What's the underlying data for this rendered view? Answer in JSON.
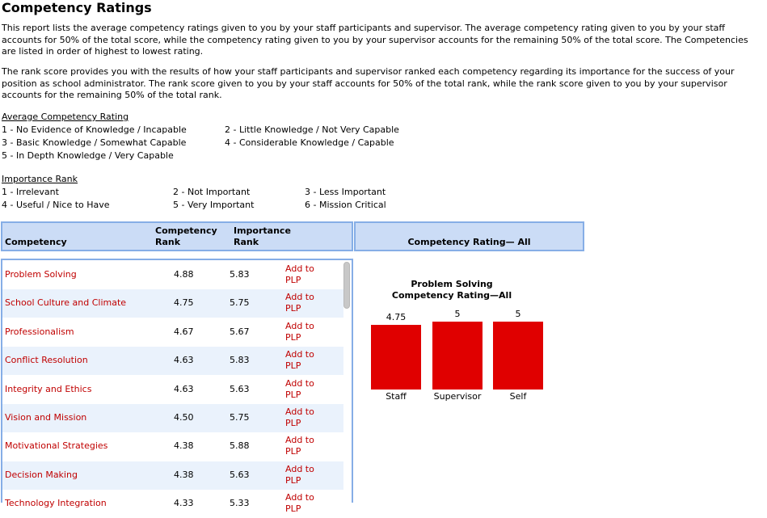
{
  "title": "Competency Ratings",
  "intro": {
    "p1": "This report lists the average competency ratings given to you by your staff participants and supervisor. The average competency rating given to you by your staff accounts for 50% of the total score, while the competency rating given to you by your supervisor accounts for the remaining 50% of the total score. The Competencies are listed in order of highest to lowest rating.",
    "p2": "The rank score provides you with the results of how your staff participants and supervisor ranked each competency regarding its importance for the success of your position as school administrator. The rank score given to you by your staff accounts for 50% of the total rank, while the rank score given to you by your supervisor accounts for the remaining 50% of the total rank."
  },
  "rating_legend": {
    "title": "Average Competency Rating",
    "items": [
      "1 - No Evidence of Knowledge / Incapable",
      "2 - Little Knowledge / Not Very Capable",
      "3 - Basic Knowledge / Somewhat Capable",
      "4 - Considerable Knowledge / Capable",
      "5 - In Depth Knowledge / Very Capable"
    ]
  },
  "importance_legend": {
    "title": "Importance Rank",
    "items": [
      "1 - Irrelevant",
      "2 - Not Important",
      "3 - Less Important",
      "4 - Useful / Nice to Have",
      "5 - Very Important",
      "6 - Mission Critical"
    ]
  },
  "table": {
    "headers": {
      "competency": "Competency",
      "comp_rank_1": "Competency",
      "comp_rank_2": "Rank",
      "imp_rank_1": "Importance",
      "imp_rank_2": "Rank",
      "rating_all": "Competency Rating— All"
    },
    "add_label_1": "Add to",
    "add_label_2": "PLP",
    "rows": [
      {
        "name": "Problem Solving",
        "comp_rank": "4.88",
        "imp_rank": "5.83"
      },
      {
        "name": "School Culture and Climate",
        "comp_rank": "4.75",
        "imp_rank": "5.75"
      },
      {
        "name": "Professionalism",
        "comp_rank": "4.67",
        "imp_rank": "5.67"
      },
      {
        "name": "Conflict Resolution",
        "comp_rank": "4.63",
        "imp_rank": "5.83"
      },
      {
        "name": "Integrity and Ethics",
        "comp_rank": "4.63",
        "imp_rank": "5.63"
      },
      {
        "name": "Vision and Mission",
        "comp_rank": "4.50",
        "imp_rank": "5.75"
      },
      {
        "name": "Motivational Strategies",
        "comp_rank": "4.38",
        "imp_rank": "5.88"
      },
      {
        "name": "Decision Making",
        "comp_rank": "4.38",
        "imp_rank": "5.63"
      },
      {
        "name": "Technology Integration",
        "comp_rank": "4.33",
        "imp_rank": "5.33"
      }
    ]
  },
  "chart_data": {
    "type": "bar",
    "title": "Problem Solving Competency Rating—All",
    "title_line1": "Problem Solving",
    "title_line2": "Competency Rating—All",
    "categories": [
      "Staff",
      "Supervisor",
      "Self"
    ],
    "values": [
      4.75,
      5,
      5
    ],
    "value_labels": [
      "4.75",
      "5",
      "5"
    ],
    "ylim": [
      0,
      5
    ],
    "bar_color": "#e00000",
    "grid": false
  }
}
